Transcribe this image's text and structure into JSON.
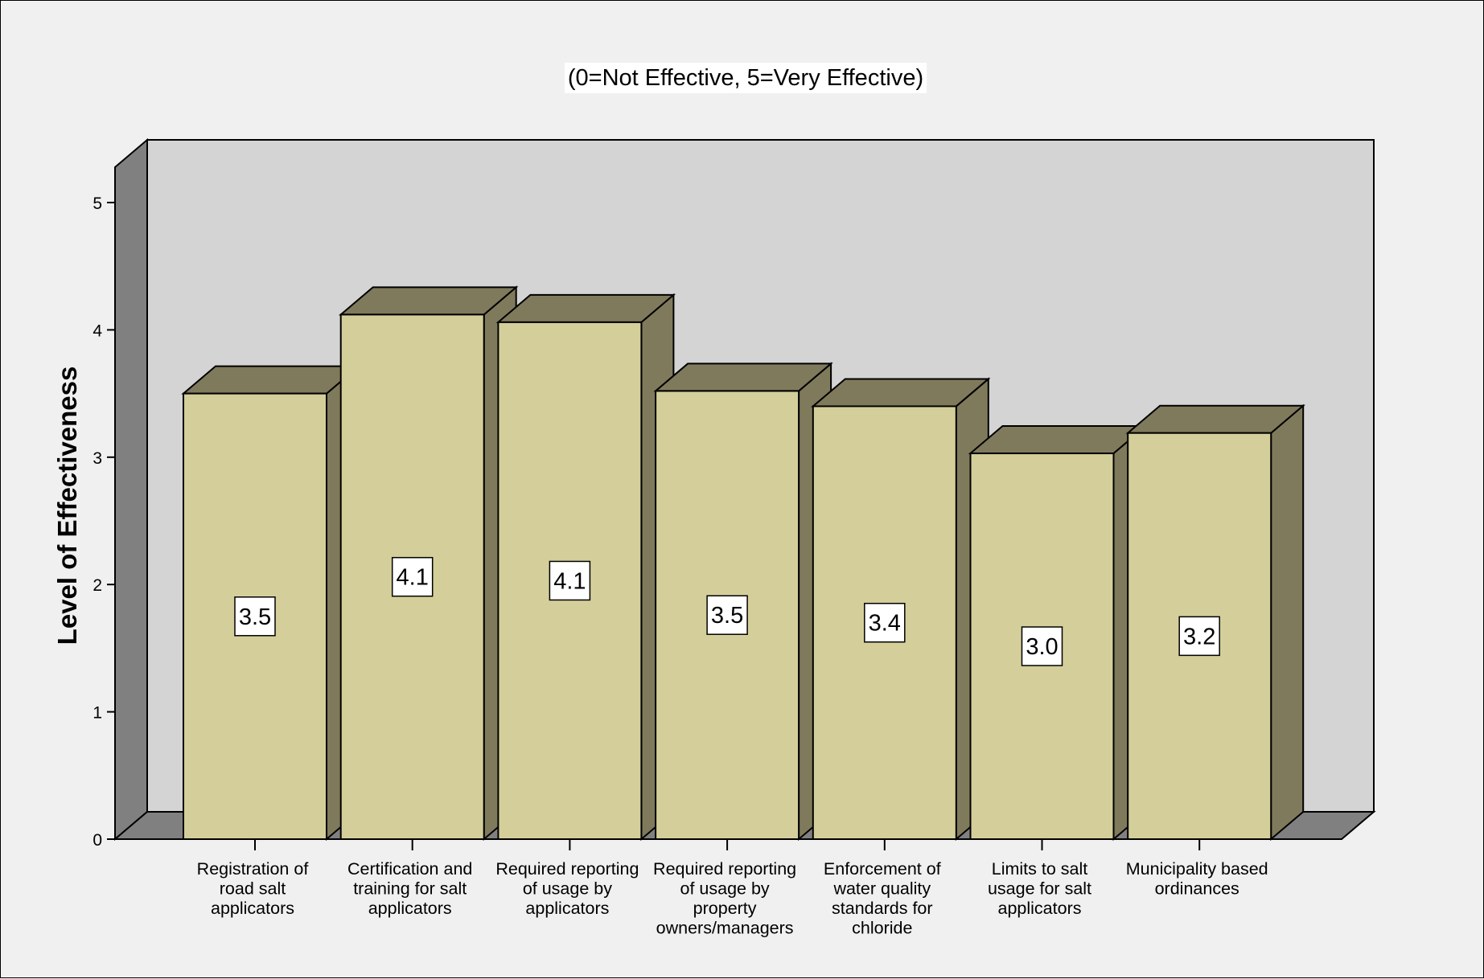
{
  "chart_data": {
    "type": "bar",
    "title": "(0=Not Effective, 5=Very Effective)",
    "ylabel": "Level of Effectiveness",
    "xlabel": "",
    "ylim": [
      0,
      5
    ],
    "yticks": [
      0,
      1,
      2,
      3,
      4,
      5
    ],
    "grid": false,
    "three_d": true,
    "categories": [
      [
        "Registration of",
        "road salt",
        "applicators"
      ],
      [
        "Certification and",
        "training for salt",
        "applicators"
      ],
      [
        "Required reporting",
        "of usage by",
        "applicators"
      ],
      [
        "Required reporting",
        "of usage by",
        "property",
        "owners/managers"
      ],
      [
        "Enforcement of",
        "water quality",
        "standards for",
        "chloride"
      ],
      [
        "Limits to salt",
        "usage for salt",
        "applicators"
      ],
      [
        "Municipality based",
        "ordinances"
      ]
    ],
    "values": [
      3.5,
      4.12,
      4.06,
      3.52,
      3.4,
      3.03,
      3.19
    ],
    "data_labels": [
      "3.5",
      "4.1",
      "4.1",
      "3.5",
      "3.4",
      "3.0",
      "3.2"
    ],
    "colors": {
      "bar_front": "#d4cf9a",
      "bar_top": "#807a5c",
      "bar_side": "#807a5c",
      "back_wall": "#d4d4d4",
      "side_wall": "#808080",
      "floor": "#808080",
      "background": "#f0f0f0"
    }
  }
}
